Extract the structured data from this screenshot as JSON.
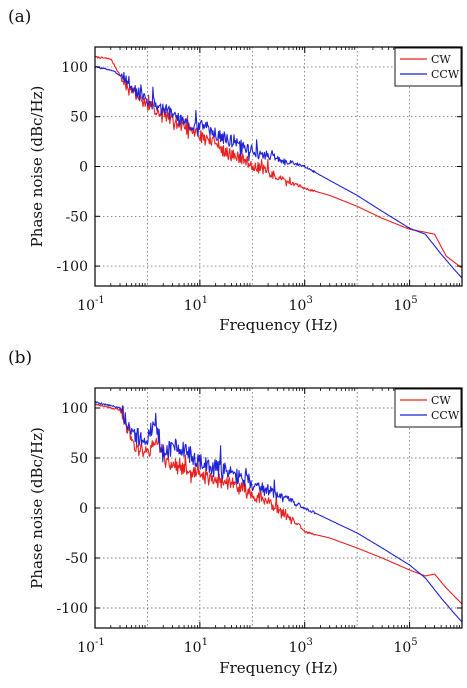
{
  "chart_data": [
    {
      "panel_label": "(a)",
      "type": "line",
      "xlabel": "Frequency (Hz)",
      "ylabel": "Phase noise (dBc/Hz)",
      "xscale": "log",
      "xlim": [
        0.1,
        1000000
      ],
      "ylim": [
        -120,
        120
      ],
      "x_ticks": [
        {
          "base": "10",
          "exp": "-1",
          "value": 0.1
        },
        {
          "base": "10",
          "exp": "1",
          "value": 10
        },
        {
          "base": "10",
          "exp": "3",
          "value": 1000
        },
        {
          "base": "10",
          "exp": "5",
          "value": 100000
        }
      ],
      "y_ticks": [
        {
          "label": "100",
          "value": 100
        },
        {
          "label": "50",
          "value": 50
        },
        {
          "label": "0",
          "value": 0
        },
        {
          "label": "-50",
          "value": -50
        },
        {
          "label": "-100",
          "value": -100
        }
      ],
      "grid": true,
      "legend_position": "top-right",
      "series": [
        {
          "name": "CW",
          "color": "#e8211f",
          "noise": 9,
          "seed": 7,
          "points": [
            [
              0.1,
              110
            ],
            [
              0.2,
              108
            ],
            [
              0.4,
              80
            ],
            [
              0.7,
              68
            ],
            [
              1,
              62
            ],
            [
              2,
              54
            ],
            [
              4,
              42
            ],
            [
              8,
              35
            ],
            [
              12,
              28
            ],
            [
              20,
              24
            ],
            [
              30,
              14
            ],
            [
              60,
              8
            ],
            [
              100,
              2
            ],
            [
              200,
              -6
            ],
            [
              400,
              -14
            ],
            [
              700,
              -18
            ],
            [
              1000,
              -22
            ],
            [
              3000,
              -29
            ],
            [
              10000,
              -40
            ],
            [
              30000,
              -52
            ],
            [
              100000,
              -63
            ],
            [
              200000,
              -66
            ],
            [
              300000,
              -68
            ],
            [
              500000,
              -90
            ],
            [
              1000000,
              -102
            ]
          ]
        },
        {
          "name": "CCW",
          "color": "#1f22d6",
          "noise": 9,
          "seed": 3,
          "points": [
            [
              0.1,
              100
            ],
            [
              0.2,
              97
            ],
            [
              0.4,
              88
            ],
            [
              0.6,
              75
            ],
            [
              1,
              66
            ],
            [
              2,
              58
            ],
            [
              4,
              48
            ],
            [
              8,
              40
            ],
            [
              12,
              42
            ],
            [
              20,
              32
            ],
            [
              40,
              26
            ],
            [
              100,
              15
            ],
            [
              300,
              8
            ],
            [
              1000,
              0
            ],
            [
              3000,
              -14
            ],
            [
              10000,
              -29
            ],
            [
              30000,
              -45
            ],
            [
              100000,
              -62
            ],
            [
              200000,
              -68
            ],
            [
              400000,
              -88
            ],
            [
              700000,
              -103
            ],
            [
              1000000,
              -112
            ]
          ]
        }
      ]
    },
    {
      "panel_label": "(b)",
      "type": "line",
      "xlabel": "Frequency (Hz)",
      "ylabel": "Phase noise (dBc/Hz)",
      "xscale": "log",
      "xlim": [
        0.1,
        1000000
      ],
      "ylim": [
        -120,
        120
      ],
      "x_ticks": [
        {
          "base": "10",
          "exp": "-1",
          "value": 0.1
        },
        {
          "base": "10",
          "exp": "1",
          "value": 10
        },
        {
          "base": "10",
          "exp": "3",
          "value": 1000
        },
        {
          "base": "10",
          "exp": "5",
          "value": 100000
        }
      ],
      "y_ticks": [
        {
          "label": "100",
          "value": 100
        },
        {
          "label": "50",
          "value": 50
        },
        {
          "label": "0",
          "value": 0
        },
        {
          "label": "-50",
          "value": -50
        },
        {
          "label": "-100",
          "value": -100
        }
      ],
      "grid": true,
      "legend_position": "top-right",
      "series": [
        {
          "name": "CW",
          "color": "#e8211f",
          "noise": 10,
          "seed": 11,
          "points": [
            [
              0.1,
              104
            ],
            [
              0.3,
              98
            ],
            [
              0.6,
              60
            ],
            [
              1,
              55
            ],
            [
              1.5,
              68
            ],
            [
              2,
              50
            ],
            [
              4,
              40
            ],
            [
              10,
              32
            ],
            [
              20,
              28
            ],
            [
              40,
              24
            ],
            [
              100,
              14
            ],
            [
              200,
              6
            ],
            [
              400,
              -6
            ],
            [
              800,
              -18
            ],
            [
              1000,
              -24
            ],
            [
              3000,
              -30
            ],
            [
              10000,
              -40
            ],
            [
              30000,
              -50
            ],
            [
              100000,
              -62
            ],
            [
              200000,
              -68
            ],
            [
              300000,
              -66
            ],
            [
              500000,
              -80
            ],
            [
              1000000,
              -96
            ]
          ]
        },
        {
          "name": "CCW",
          "color": "#1f22d6",
          "noise": 12,
          "seed": 5,
          "points": [
            [
              0.1,
              106
            ],
            [
              0.3,
              100
            ],
            [
              0.6,
              72
            ],
            [
              1,
              68
            ],
            [
              1.4,
              90
            ],
            [
              2,
              52
            ],
            [
              3,
              62
            ],
            [
              5,
              58
            ],
            [
              10,
              46
            ],
            [
              20,
              40
            ],
            [
              40,
              35
            ],
            [
              100,
              24
            ],
            [
              200,
              17
            ],
            [
              500,
              8
            ],
            [
              1000,
              0
            ],
            [
              3000,
              -12
            ],
            [
              10000,
              -25
            ],
            [
              30000,
              -40
            ],
            [
              100000,
              -57
            ],
            [
              200000,
              -70
            ],
            [
              400000,
              -90
            ],
            [
              700000,
              -105
            ],
            [
              1000000,
              -114
            ]
          ]
        }
      ]
    }
  ]
}
